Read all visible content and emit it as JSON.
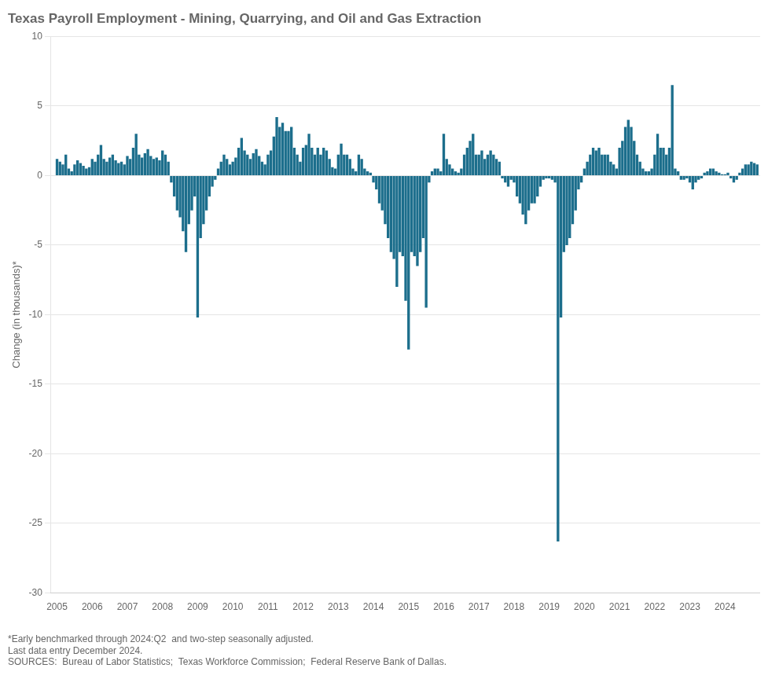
{
  "chart_data": {
    "type": "bar",
    "title": "Texas Payroll Employment - Mining, Quarrying, and Oil and Gas Extraction",
    "ylabel": "Change (in thousands)*",
    "annotations": [
      "*Early benchmarked through 2024:Q2  and two-step seasonally adjusted.",
      "Last data entry December 2024.",
      "SOURCES:  Bureau of Labor Statistics;  Texas Workforce Commission;  Federal Reserve Bank of Dallas."
    ],
    "color": "#1c6e8c",
    "grid": true,
    "xlim": [
      2004.83,
      2025.0
    ],
    "xticks": [
      2005,
      2006,
      2007,
      2008,
      2009,
      2010,
      2011,
      2012,
      2013,
      2014,
      2015,
      2016,
      2017,
      2018,
      2019,
      2020,
      2021,
      2022,
      2023,
      2024
    ],
    "ylim": [
      -30,
      10
    ],
    "yticks": [
      -30,
      -25,
      -20,
      -15,
      -10,
      -5,
      0,
      5,
      10
    ],
    "x": [
      2005,
      2005.0833,
      2005.1667,
      2005.25,
      2005.3333,
      2005.4167,
      2005.5,
      2005.5833,
      2005.6667,
      2005.75,
      2005.8333,
      2005.9167,
      2006,
      2006.0833,
      2006.1667,
      2006.25,
      2006.3333,
      2006.4167,
      2006.5,
      2006.5833,
      2006.6667,
      2006.75,
      2006.8333,
      2006.9167,
      2007,
      2007.0833,
      2007.1667,
      2007.25,
      2007.3333,
      2007.4167,
      2007.5,
      2007.5833,
      2007.6667,
      2007.75,
      2007.8333,
      2007.9167,
      2008,
      2008.0833,
      2008.1667,
      2008.25,
      2008.3333,
      2008.4167,
      2008.5,
      2008.5833,
      2008.6667,
      2008.75,
      2008.8333,
      2008.9167,
      2009,
      2009.0833,
      2009.1667,
      2009.25,
      2009.3333,
      2009.4167,
      2009.5,
      2009.5833,
      2009.6667,
      2009.75,
      2009.8333,
      2009.9167,
      2010,
      2010.0833,
      2010.1667,
      2010.25,
      2010.3333,
      2010.4167,
      2010.5,
      2010.5833,
      2010.6667,
      2010.75,
      2010.8333,
      2010.9167,
      2011,
      2011.0833,
      2011.1667,
      2011.25,
      2011.3333,
      2011.4167,
      2011.5,
      2011.5833,
      2011.6667,
      2011.75,
      2011.8333,
      2011.9167,
      2012,
      2012.0833,
      2012.1667,
      2012.25,
      2012.3333,
      2012.4167,
      2012.5,
      2012.5833,
      2012.6667,
      2012.75,
      2012.8333,
      2012.9167,
      2013,
      2013.0833,
      2013.1667,
      2013.25,
      2013.3333,
      2013.4167,
      2013.5,
      2013.5833,
      2013.6667,
      2013.75,
      2013.8333,
      2013.9167,
      2014,
      2014.0833,
      2014.1667,
      2014.25,
      2014.3333,
      2014.4167,
      2014.5,
      2014.5833,
      2014.6667,
      2014.75,
      2014.8333,
      2014.9167,
      2015,
      2015.0833,
      2015.1667,
      2015.25,
      2015.3333,
      2015.4167,
      2015.5,
      2015.5833,
      2015.6667,
      2015.75,
      2015.8333,
      2015.9167,
      2016,
      2016.0833,
      2016.1667,
      2016.25,
      2016.3333,
      2016.4167,
      2016.5,
      2016.5833,
      2016.6667,
      2016.75,
      2016.8333,
      2016.9167,
      2017,
      2017.0833,
      2017.1667,
      2017.25,
      2017.3333,
      2017.4167,
      2017.5,
      2017.5833,
      2017.6667,
      2017.75,
      2017.8333,
      2017.9167,
      2018,
      2018.0833,
      2018.1667,
      2018.25,
      2018.3333,
      2018.4167,
      2018.5,
      2018.5833,
      2018.6667,
      2018.75,
      2018.8333,
      2018.9167,
      2019,
      2019.0833,
      2019.1667,
      2019.25,
      2019.3333,
      2019.4167,
      2019.5,
      2019.5833,
      2019.6667,
      2019.75,
      2019.8333,
      2019.9167,
      2020,
      2020.0833,
      2020.1667,
      2020.25,
      2020.3333,
      2020.4167,
      2020.5,
      2020.5833,
      2020.6667,
      2020.75,
      2020.8333,
      2020.9167,
      2021,
      2021.0833,
      2021.1667,
      2021.25,
      2021.3333,
      2021.4167,
      2021.5,
      2021.5833,
      2021.6667,
      2021.75,
      2021.8333,
      2021.9167,
      2022,
      2022.0833,
      2022.1667,
      2022.25,
      2022.3333,
      2022.4167,
      2022.5,
      2022.5833,
      2022.6667,
      2022.75,
      2022.8333,
      2022.9167,
      2023,
      2023.0833,
      2023.1667,
      2023.25,
      2023.3333,
      2023.4167,
      2023.5,
      2023.5833,
      2023.6667,
      2023.75,
      2023.8333,
      2023.9167,
      2024,
      2024.0833,
      2024.1667,
      2024.25,
      2024.3333,
      2024.4167,
      2024.5,
      2024.5833,
      2024.6667,
      2024.75,
      2024.8333,
      2024.9167
    ],
    "values": [
      1.2,
      1.0,
      0.8,
      1.5,
      0.5,
      0.3,
      0.8,
      1.1,
      0.9,
      0.7,
      0.5,
      0.6,
      1.2,
      1.0,
      1.5,
      2.2,
      1.2,
      1.0,
      1.3,
      1.5,
      1.1,
      0.9,
      1.0,
      0.8,
      1.4,
      1.2,
      2.0,
      3.0,
      1.5,
      1.3,
      1.6,
      1.9,
      1.4,
      1.2,
      1.3,
      1.1,
      1.8,
      1.5,
      1.0,
      -0.5,
      -1.5,
      -2.5,
      -3.0,
      -4.0,
      -5.5,
      -3.5,
      -2.5,
      -1.5,
      -10.2,
      -4.5,
      -3.5,
      -2.5,
      -1.5,
      -0.8,
      -0.3,
      0.5,
      1.0,
      1.5,
      1.2,
      0.8,
      1.0,
      1.3,
      2.0,
      2.7,
      1.8,
      1.5,
      1.2,
      1.6,
      1.9,
      1.4,
      1.0,
      0.8,
      1.5,
      1.8,
      2.8,
      4.2,
      3.5,
      3.8,
      3.2,
      3.2,
      3.5,
      2.0,
      1.5,
      1.0,
      2.0,
      2.2,
      3.0,
      2.0,
      1.5,
      2.0,
      1.5,
      2.0,
      1.8,
      1.2,
      0.6,
      0.5,
      1.5,
      2.3,
      1.5,
      1.5,
      1.2,
      0.5,
      0.3,
      1.5,
      1.2,
      0.5,
      0.3,
      0.2,
      -0.5,
      -1.0,
      -2.0,
      -2.5,
      -3.5,
      -4.5,
      -5.5,
      -6.0,
      -8.0,
      -5.5,
      -5.8,
      -9.0,
      -12.5,
      -5.5,
      -5.8,
      -6.5,
      -5.5,
      -4.5,
      -9.5,
      -0.5,
      0.3,
      0.5,
      0.5,
      0.3,
      3.0,
      1.2,
      0.8,
      0.5,
      0.3,
      0.2,
      0.5,
      1.5,
      2.0,
      2.5,
      3.0,
      1.5,
      1.5,
      1.8,
      1.2,
      1.5,
      1.8,
      1.5,
      1.2,
      1.0,
      -0.2,
      -0.5,
      -0.8,
      -0.3,
      -0.5,
      -1.5,
      -2.0,
      -2.8,
      -3.5,
      -2.5,
      -2.0,
      -2.0,
      -1.5,
      -0.8,
      -0.3,
      -0.2,
      -0.2,
      -0.3,
      -0.5,
      -26.3,
      -10.2,
      -5.5,
      -5.0,
      -4.5,
      -3.5,
      -2.5,
      -1.0,
      -0.5,
      0.5,
      1.0,
      1.5,
      2.0,
      1.8,
      2.0,
      1.5,
      1.5,
      1.5,
      1.0,
      0.8,
      0.5,
      2.0,
      2.5,
      3.5,
      4.0,
      3.5,
      2.5,
      1.5,
      1.0,
      0.5,
      0.3,
      0.3,
      0.5,
      1.5,
      3.0,
      2.0,
      2.0,
      1.5,
      2.0,
      6.5,
      0.5,
      0.3,
      -0.3,
      -0.3,
      -0.2,
      -0.5,
      -1.0,
      -0.5,
      -0.3,
      -0.2,
      0.2,
      0.3,
      0.5,
      0.5,
      0.3,
      0.2,
      0.1,
      0.1,
      0.2,
      -0.2,
      -0.5,
      -0.3,
      0.2,
      0.5,
      0.8,
      0.8,
      1.0,
      0.9,
      0.8
    ]
  }
}
